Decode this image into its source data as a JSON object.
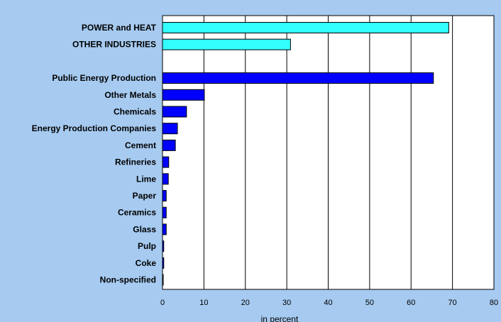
{
  "chart_data": {
    "type": "bar",
    "orientation": "horizontal",
    "categories": [
      "POWER and HEAT",
      "OTHER INDUSTRIES",
      "",
      "Public Energy Production",
      "Other Metals",
      "Chemicals",
      "Energy Production Companies",
      "Cement",
      "Refineries",
      "Lime",
      "Paper",
      "Ceramics",
      "Glass",
      "Pulp",
      "Coke",
      "Non-specified"
    ],
    "values": [
      69.1,
      30.9,
      null,
      65.4,
      10.1,
      5.8,
      3.6,
      3.1,
      1.5,
      1.4,
      0.9,
      0.9,
      0.9,
      0.3,
      0.3,
      0.1
    ],
    "xlabel": "in percent",
    "xlim": [
      0,
      80
    ],
    "xticks": [
      "0",
      "10",
      "20",
      "30",
      "40",
      "50",
      "60",
      "70",
      "80"
    ],
    "grid": "vertical",
    "colors": {
      "background": "#a6caf0",
      "plot_area": "#ffffff",
      "summary_bars": "#33ffff",
      "detail_bars": "#0000ff"
    },
    "summary_categories": [
      "POWER and HEAT",
      "OTHER INDUSTRIES"
    ]
  }
}
